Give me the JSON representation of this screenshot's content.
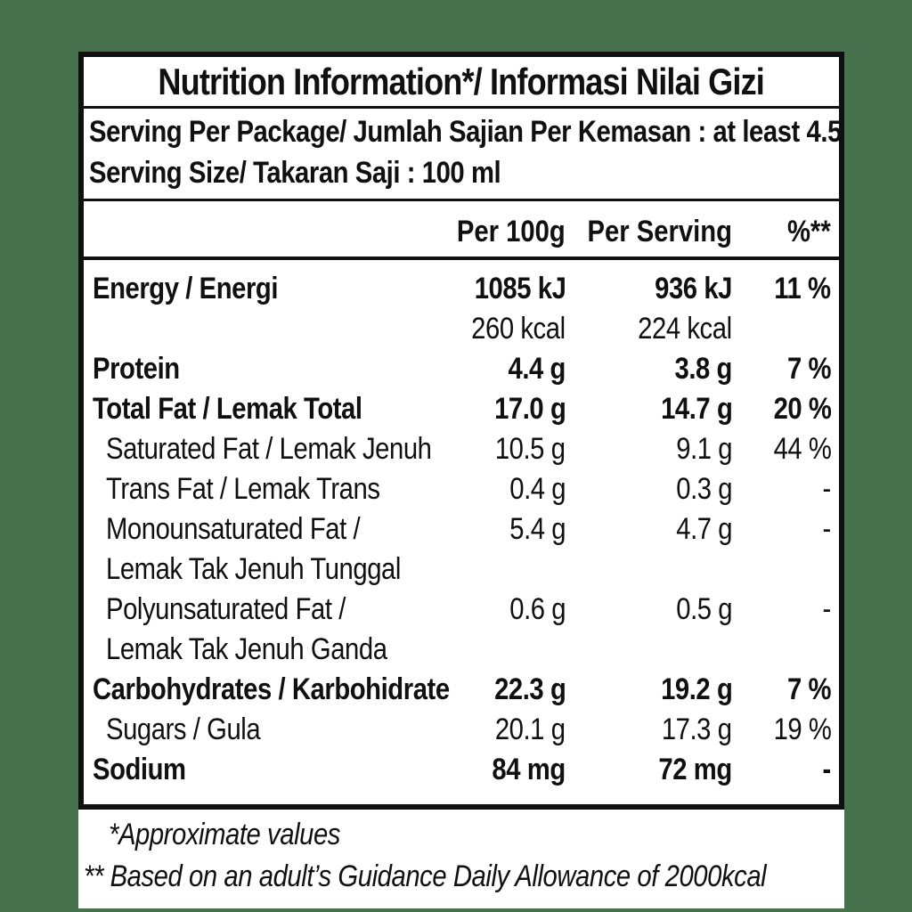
{
  "page": {
    "background_color": "#47704d",
    "panel_color": "#ffffff",
    "text_color": "#101010",
    "border_color": "#101010"
  },
  "label": {
    "title": "Nutrition Information*/ Informasi Nilai Gizi",
    "serving_lines": [
      "Serving Per Package/ Jumlah Sajian Per Kemasan : at least 4.5",
      "Serving Size/ Takaran Saji : 100 ml"
    ],
    "columns": [
      "Per 100g",
      "Per Serving",
      "%**"
    ],
    "rows": [
      {
        "label": "Energy / Energi",
        "bold": true,
        "indent": false,
        "per_100g": "1085 kJ",
        "per_serving": "936 kJ",
        "pct": "11 %"
      },
      {
        "label": "",
        "bold": false,
        "indent": false,
        "per_100g": "260 kcal",
        "per_serving": "224 kcal",
        "pct": ""
      },
      {
        "label": "Protein",
        "bold": true,
        "indent": false,
        "per_100g": "4.4 g",
        "per_serving": "3.8 g",
        "pct": "7 %"
      },
      {
        "label": "Total Fat / Lemak Total",
        "bold": true,
        "indent": false,
        "per_100g": "17.0 g",
        "per_serving": "14.7 g",
        "pct": "20 %"
      },
      {
        "label": "Saturated Fat / Lemak Jenuh",
        "bold": false,
        "indent": true,
        "per_100g": "10.5 g",
        "per_serving": "9.1 g",
        "pct": "44 %"
      },
      {
        "label": "Trans Fat / Lemak Trans",
        "bold": false,
        "indent": true,
        "per_100g": "0.4 g",
        "per_serving": "0.3 g",
        "pct": "-"
      },
      {
        "label": "Monounsaturated Fat /",
        "bold": false,
        "indent": true,
        "per_100g": "5.4 g",
        "per_serving": "4.7 g",
        "pct": "-"
      },
      {
        "label": "Lemak Tak Jenuh Tunggal",
        "bold": false,
        "indent": true,
        "per_100g": "",
        "per_serving": "",
        "pct": ""
      },
      {
        "label": "Polyunsaturated Fat /",
        "bold": false,
        "indent": true,
        "per_100g": "0.6 g",
        "per_serving": "0.5 g",
        "pct": "-"
      },
      {
        "label": "Lemak Tak Jenuh Ganda",
        "bold": false,
        "indent": true,
        "per_100g": "",
        "per_serving": "",
        "pct": ""
      },
      {
        "label": "Carbohydrates / Karbohidrate",
        "bold": true,
        "indent": false,
        "per_100g": "22.3 g",
        "per_serving": "19.2 g",
        "pct": "7 %"
      },
      {
        "label": "Sugars / Gula",
        "bold": false,
        "indent": true,
        "per_100g": "20.1 g",
        "per_serving": "17.3 g",
        "pct": "19 %"
      },
      {
        "label": "Sodium",
        "bold": true,
        "indent": false,
        "per_100g": "84 mg",
        "per_serving": "72 mg",
        "pct": "-"
      }
    ],
    "footnotes": [
      "*Approximate values",
      "** Based on an adult’s Guidance Daily Allowance of 2000kcal"
    ]
  }
}
